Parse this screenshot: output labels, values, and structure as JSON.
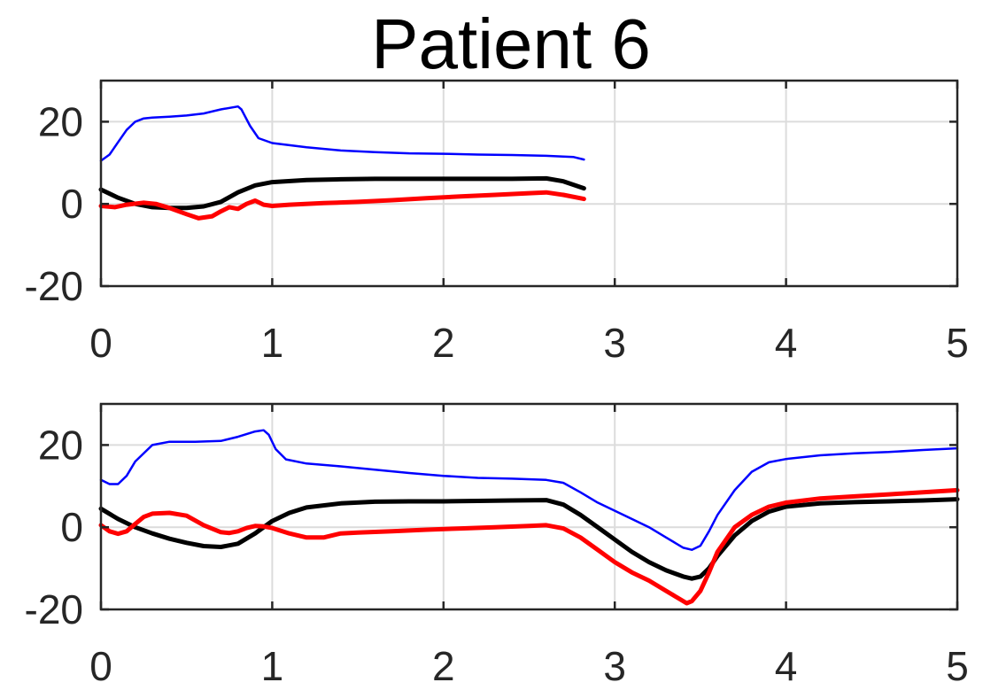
{
  "title": "Patient 6",
  "chart_data": [
    {
      "type": "line",
      "xlim": [
        0,
        5
      ],
      "ylim": [
        -20,
        30
      ],
      "xticks": [
        0,
        1,
        2,
        3,
        4,
        5
      ],
      "yticks": [
        -20,
        0,
        20
      ],
      "grid": true,
      "series": [
        {
          "color": "#0000ff",
          "width": 2.5,
          "points": [
            [
              0,
              10.5
            ],
            [
              0.05,
              12
            ],
            [
              0.1,
              15
            ],
            [
              0.15,
              18
            ],
            [
              0.2,
              20
            ],
            [
              0.25,
              20.8
            ],
            [
              0.3,
              21
            ],
            [
              0.4,
              21.2
            ],
            [
              0.5,
              21.5
            ],
            [
              0.6,
              22
            ],
            [
              0.7,
              23
            ],
            [
              0.8,
              23.7
            ],
            [
              0.82,
              23
            ],
            [
              0.87,
              19
            ],
            [
              0.92,
              16
            ],
            [
              1.0,
              14.8
            ],
            [
              1.2,
              13.8
            ],
            [
              1.4,
              13
            ],
            [
              1.6,
              12.6
            ],
            [
              1.8,
              12.3
            ],
            [
              2.0,
              12.2
            ],
            [
              2.2,
              12
            ],
            [
              2.4,
              11.9
            ],
            [
              2.6,
              11.7
            ],
            [
              2.7,
              11.5
            ],
            [
              2.76,
              11.4
            ],
            [
              2.82,
              10.8
            ]
          ]
        },
        {
          "color": "#000000",
          "width": 5,
          "points": [
            [
              0,
              3.5
            ],
            [
              0.1,
              1.5
            ],
            [
              0.2,
              0
            ],
            [
              0.3,
              -0.8
            ],
            [
              0.4,
              -1
            ],
            [
              0.5,
              -1
            ],
            [
              0.6,
              -0.6
            ],
            [
              0.7,
              0.5
            ],
            [
              0.8,
              2.8
            ],
            [
              0.9,
              4.5
            ],
            [
              1.0,
              5.3
            ],
            [
              1.2,
              5.8
            ],
            [
              1.4,
              6
            ],
            [
              1.6,
              6.1
            ],
            [
              1.8,
              6.1
            ],
            [
              2.0,
              6.1
            ],
            [
              2.2,
              6.1
            ],
            [
              2.4,
              6.1
            ],
            [
              2.6,
              6.2
            ],
            [
              2.7,
              5.5
            ],
            [
              2.82,
              3.8
            ]
          ]
        },
        {
          "color": "#ff0000",
          "width": 5,
          "points": [
            [
              0,
              -0.5
            ],
            [
              0.08,
              -0.8
            ],
            [
              0.15,
              -0.2
            ],
            [
              0.25,
              0.3
            ],
            [
              0.32,
              0
            ],
            [
              0.4,
              -1
            ],
            [
              0.5,
              -2.5
            ],
            [
              0.57,
              -3.5
            ],
            [
              0.65,
              -3
            ],
            [
              0.7,
              -1.8
            ],
            [
              0.75,
              -0.8
            ],
            [
              0.8,
              -1.2
            ],
            [
              0.85,
              0
            ],
            [
              0.9,
              0.8
            ],
            [
              0.95,
              -0.2
            ],
            [
              1.0,
              -0.5
            ],
            [
              1.1,
              -0.2
            ],
            [
              1.3,
              0.2
            ],
            [
              1.5,
              0.5
            ],
            [
              1.7,
              0.9
            ],
            [
              1.9,
              1.4
            ],
            [
              2.1,
              1.8
            ],
            [
              2.3,
              2.2
            ],
            [
              2.5,
              2.6
            ],
            [
              2.6,
              2.8
            ],
            [
              2.7,
              2.2
            ],
            [
              2.82,
              1.2
            ]
          ]
        }
      ]
    },
    {
      "type": "line",
      "xlim": [
        0,
        5
      ],
      "ylim": [
        -20,
        30
      ],
      "xticks": [
        0,
        1,
        2,
        3,
        4,
        5
      ],
      "yticks": [
        -20,
        0,
        20
      ],
      "grid": true,
      "series": [
        {
          "color": "#0000ff",
          "width": 2.5,
          "points": [
            [
              0,
              11.5
            ],
            [
              0.05,
              10.5
            ],
            [
              0.1,
              10.5
            ],
            [
              0.15,
              12.5
            ],
            [
              0.2,
              16
            ],
            [
              0.3,
              20
            ],
            [
              0.4,
              20.8
            ],
            [
              0.55,
              20.8
            ],
            [
              0.7,
              21
            ],
            [
              0.8,
              22
            ],
            [
              0.9,
              23.3
            ],
            [
              0.95,
              23.6
            ],
            [
              0.98,
              22.5
            ],
            [
              1.02,
              19
            ],
            [
              1.08,
              16.5
            ],
            [
              1.2,
              15.5
            ],
            [
              1.4,
              14.8
            ],
            [
              1.6,
              14
            ],
            [
              1.8,
              13.2
            ],
            [
              2.0,
              12.5
            ],
            [
              2.2,
              12
            ],
            [
              2.4,
              11.8
            ],
            [
              2.6,
              11.5
            ],
            [
              2.7,
              10.8
            ],
            [
              2.8,
              8.5
            ],
            [
              2.9,
              6
            ],
            [
              3.0,
              4
            ],
            [
              3.1,
              2
            ],
            [
              3.2,
              0
            ],
            [
              3.3,
              -2.5
            ],
            [
              3.4,
              -5
            ],
            [
              3.45,
              -5.5
            ],
            [
              3.5,
              -4.5
            ],
            [
              3.55,
              -1
            ],
            [
              3.6,
              3
            ],
            [
              3.7,
              9
            ],
            [
              3.8,
              13.5
            ],
            [
              3.9,
              15.8
            ],
            [
              4.0,
              16.6
            ],
            [
              4.2,
              17.5
            ],
            [
              4.4,
              18
            ],
            [
              4.6,
              18.3
            ],
            [
              4.8,
              18.8
            ],
            [
              5.0,
              19.2
            ]
          ]
        },
        {
          "color": "#000000",
          "width": 5,
          "points": [
            [
              0,
              4.5
            ],
            [
              0.1,
              2
            ],
            [
              0.2,
              0
            ],
            [
              0.3,
              -1.5
            ],
            [
              0.4,
              -2.8
            ],
            [
              0.5,
              -3.8
            ],
            [
              0.6,
              -4.6
            ],
            [
              0.7,
              -4.8
            ],
            [
              0.8,
              -4
            ],
            [
              0.9,
              -1.5
            ],
            [
              1.0,
              1.5
            ],
            [
              1.1,
              3.5
            ],
            [
              1.2,
              4.8
            ],
            [
              1.4,
              5.8
            ],
            [
              1.6,
              6.2
            ],
            [
              1.8,
              6.3
            ],
            [
              2.0,
              6.3
            ],
            [
              2.2,
              6.4
            ],
            [
              2.4,
              6.5
            ],
            [
              2.6,
              6.6
            ],
            [
              2.7,
              5.5
            ],
            [
              2.8,
              3
            ],
            [
              2.9,
              0
            ],
            [
              3.0,
              -3
            ],
            [
              3.1,
              -6
            ],
            [
              3.2,
              -8.5
            ],
            [
              3.3,
              -10.5
            ],
            [
              3.4,
              -12
            ],
            [
              3.45,
              -12.5
            ],
            [
              3.5,
              -12
            ],
            [
              3.55,
              -10
            ],
            [
              3.6,
              -7
            ],
            [
              3.7,
              -2
            ],
            [
              3.8,
              1.5
            ],
            [
              3.9,
              3.8
            ],
            [
              4.0,
              5
            ],
            [
              4.2,
              5.8
            ],
            [
              4.4,
              6.1
            ],
            [
              4.6,
              6.3
            ],
            [
              4.8,
              6.5
            ],
            [
              5.0,
              6.8
            ]
          ]
        },
        {
          "color": "#ff0000",
          "width": 5,
          "points": [
            [
              0,
              0.5
            ],
            [
              0.05,
              -1
            ],
            [
              0.1,
              -1.6
            ],
            [
              0.15,
              -1
            ],
            [
              0.2,
              0.8
            ],
            [
              0.25,
              2.5
            ],
            [
              0.3,
              3.3
            ],
            [
              0.4,
              3.5
            ],
            [
              0.5,
              2.8
            ],
            [
              0.6,
              0.5
            ],
            [
              0.7,
              -1.2
            ],
            [
              0.75,
              -1.4
            ],
            [
              0.8,
              -1
            ],
            [
              0.85,
              -0.2
            ],
            [
              0.9,
              0.3
            ],
            [
              0.95,
              0.2
            ],
            [
              1.0,
              -0.2
            ],
            [
              1.1,
              -1.5
            ],
            [
              1.2,
              -2.5
            ],
            [
              1.3,
              -2.5
            ],
            [
              1.4,
              -1.5
            ],
            [
              1.5,
              -1.3
            ],
            [
              1.7,
              -1
            ],
            [
              1.9,
              -0.6
            ],
            [
              2.1,
              -0.3
            ],
            [
              2.3,
              0
            ],
            [
              2.5,
              0.3
            ],
            [
              2.6,
              0.5
            ],
            [
              2.7,
              -0.3
            ],
            [
              2.8,
              -2.5
            ],
            [
              2.9,
              -5.5
            ],
            [
              3.0,
              -8.5
            ],
            [
              3.1,
              -11
            ],
            [
              3.2,
              -13
            ],
            [
              3.3,
              -15.5
            ],
            [
              3.38,
              -17.5
            ],
            [
              3.42,
              -18.5
            ],
            [
              3.45,
              -18
            ],
            [
              3.5,
              -15.5
            ],
            [
              3.55,
              -11
            ],
            [
              3.6,
              -6
            ],
            [
              3.7,
              0
            ],
            [
              3.8,
              3
            ],
            [
              3.9,
              5
            ],
            [
              4.0,
              6
            ],
            [
              4.2,
              7
            ],
            [
              4.4,
              7.5
            ],
            [
              4.6,
              8
            ],
            [
              4.8,
              8.5
            ],
            [
              5.0,
              9
            ]
          ]
        }
      ]
    }
  ]
}
